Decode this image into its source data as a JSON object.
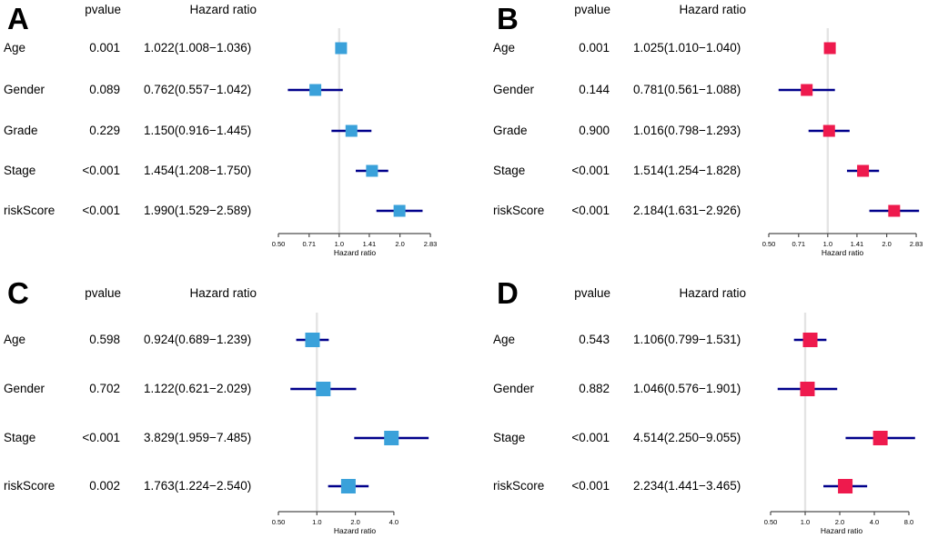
{
  "colors": {
    "ci_line": "#00008B",
    "reference_line": "#E4E4E4",
    "axis": "#4D4D4D",
    "blue_marker": "#3AA1DA",
    "red_marker": "#EE1A4D"
  },
  "chart_data": [
    {
      "type": "scatter",
      "subtype": "forest-plot",
      "panel": "A",
      "columns": [
        "pvalue",
        "Hazard ratio"
      ],
      "xlabel": "Hazard ratio",
      "xscale": "log2",
      "xlim": [
        0.5,
        2.83
      ],
      "xticks": [
        "0.50",
        "0.71",
        "1.0",
        "1.41",
        "2.0",
        "2.83"
      ],
      "xtick_values": [
        0.5,
        0.71,
        1.0,
        1.41,
        2.0,
        2.83
      ],
      "reference_value": 1.0,
      "marker_color": "#3AA1DA",
      "rows": [
        {
          "variable": "Age",
          "pvalue": "0.001",
          "hazard_ratio": "1.022(1.008−1.036)",
          "hr": 1.022,
          "ci_low": 1.008,
          "ci_high": 1.036
        },
        {
          "variable": "Gender",
          "pvalue": "0.089",
          "hazard_ratio": "0.762(0.557−1.042)",
          "hr": 0.762,
          "ci_low": 0.557,
          "ci_high": 1.042
        },
        {
          "variable": "Grade",
          "pvalue": "0.229",
          "hazard_ratio": "1.150(0.916−1.445)",
          "hr": 1.15,
          "ci_low": 0.916,
          "ci_high": 1.445
        },
        {
          "variable": "Stage",
          "pvalue": "<0.001",
          "hazard_ratio": "1.454(1.208−1.750)",
          "hr": 1.454,
          "ci_low": 1.208,
          "ci_high": 1.75
        },
        {
          "variable": "riskScore",
          "pvalue": "<0.001",
          "hazard_ratio": "1.990(1.529−2.589)",
          "hr": 1.99,
          "ci_low": 1.529,
          "ci_high": 2.589
        }
      ]
    },
    {
      "type": "scatter",
      "subtype": "forest-plot",
      "panel": "B",
      "columns": [
        "pvalue",
        "Hazard ratio"
      ],
      "xlabel": "Hazard ratio",
      "xscale": "log2",
      "xlim": [
        0.5,
        2.83
      ],
      "xticks": [
        "0.50",
        "0.71",
        "1.0",
        "1.41",
        "2.0",
        "2.83"
      ],
      "xtick_values": [
        0.5,
        0.71,
        1.0,
        1.41,
        2.0,
        2.83
      ],
      "reference_value": 1.0,
      "marker_color": "#EE1A4D",
      "rows": [
        {
          "variable": "Age",
          "pvalue": "0.001",
          "hazard_ratio": "1.025(1.010−1.040)",
          "hr": 1.025,
          "ci_low": 1.01,
          "ci_high": 1.04
        },
        {
          "variable": "Gender",
          "pvalue": "0.144",
          "hazard_ratio": "0.781(0.561−1.088)",
          "hr": 0.781,
          "ci_low": 0.561,
          "ci_high": 1.088
        },
        {
          "variable": "Grade",
          "pvalue": "0.900",
          "hazard_ratio": "1.016(0.798−1.293)",
          "hr": 1.016,
          "ci_low": 0.798,
          "ci_high": 1.293
        },
        {
          "variable": "Stage",
          "pvalue": "<0.001",
          "hazard_ratio": "1.514(1.254−1.828)",
          "hr": 1.514,
          "ci_low": 1.254,
          "ci_high": 1.828
        },
        {
          "variable": "riskScore",
          "pvalue": "<0.001",
          "hazard_ratio": "2.184(1.631−2.926)",
          "hr": 2.184,
          "ci_low": 1.631,
          "ci_high": 2.926
        }
      ]
    },
    {
      "type": "scatter",
      "subtype": "forest-plot",
      "panel": "C",
      "columns": [
        "pvalue",
        "Hazard ratio"
      ],
      "xlabel": "Hazard ratio",
      "xscale": "log2",
      "xlim": [
        0.5,
        4.0
      ],
      "xticks": [
        "0.50",
        "1.0",
        "2.0",
        "4.0"
      ],
      "xtick_values": [
        0.5,
        1.0,
        2.0,
        4.0
      ],
      "reference_value": 1.0,
      "marker_color": "#3AA1DA",
      "rows": [
        {
          "variable": "Age",
          "pvalue": "0.598",
          "hazard_ratio": "0.924(0.689−1.239)",
          "hr": 0.924,
          "ci_low": 0.689,
          "ci_high": 1.239
        },
        {
          "variable": "Gender",
          "pvalue": "0.702",
          "hazard_ratio": "1.122(0.621−2.029)",
          "hr": 1.122,
          "ci_low": 0.621,
          "ci_high": 2.029
        },
        {
          "variable": "Stage",
          "pvalue": "<0.001",
          "hazard_ratio": "3.829(1.959−7.485)",
          "hr": 3.829,
          "ci_low": 1.959,
          "ci_high": 7.485
        },
        {
          "variable": "riskScore",
          "pvalue": "0.002",
          "hazard_ratio": "1.763(1.224−2.540)",
          "hr": 1.763,
          "ci_low": 1.224,
          "ci_high": 2.54
        }
      ]
    },
    {
      "type": "scatter",
      "subtype": "forest-plot",
      "panel": "D",
      "columns": [
        "pvalue",
        "Hazard ratio"
      ],
      "xlabel": "Hazard ratio",
      "xscale": "log2",
      "xlim": [
        0.5,
        8.0
      ],
      "xticks": [
        "0.50",
        "1.0",
        "2.0",
        "4.0",
        "8.0"
      ],
      "xtick_values": [
        0.5,
        1.0,
        2.0,
        4.0,
        8.0
      ],
      "reference_value": 1.0,
      "marker_color": "#EE1A4D",
      "rows": [
        {
          "variable": "Age",
          "pvalue": "0.543",
          "hazard_ratio": "1.106(0.799−1.531)",
          "hr": 1.106,
          "ci_low": 0.799,
          "ci_high": 1.531
        },
        {
          "variable": "Gender",
          "pvalue": "0.882",
          "hazard_ratio": "1.046(0.576−1.901)",
          "hr": 1.046,
          "ci_low": 0.576,
          "ci_high": 1.901
        },
        {
          "variable": "Stage",
          "pvalue": "<0.001",
          "hazard_ratio": "4.514(2.250−9.055)",
          "hr": 4.514,
          "ci_low": 2.25,
          "ci_high": 9.055
        },
        {
          "variable": "riskScore",
          "pvalue": "<0.001",
          "hazard_ratio": "2.234(1.441−3.465)",
          "hr": 2.234,
          "ci_low": 1.441,
          "ci_high": 3.465
        }
      ]
    }
  ]
}
